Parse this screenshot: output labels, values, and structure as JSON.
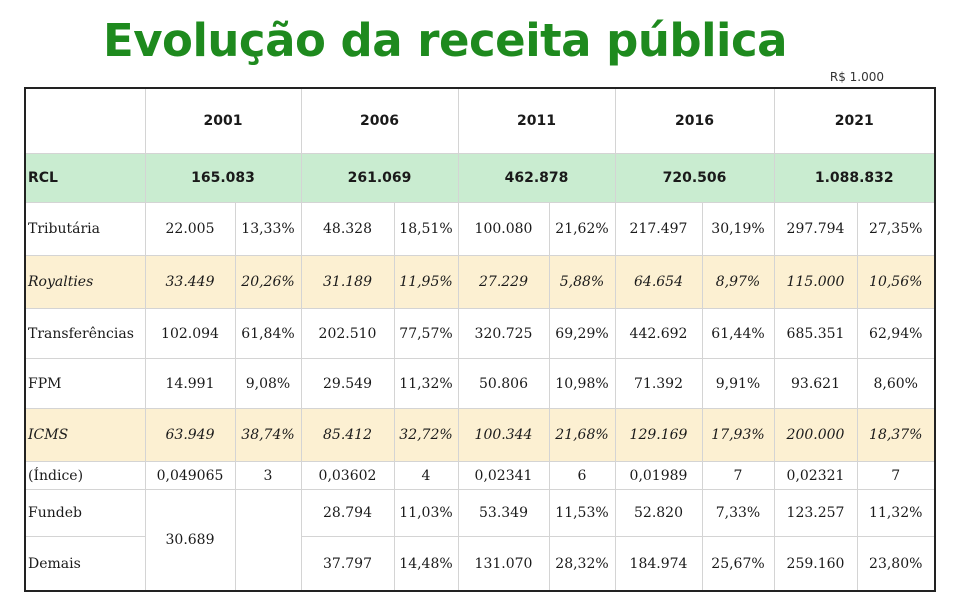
{
  "title": "Evolução da receita pública",
  "unit": "R$ 1.000",
  "years": [
    "2001",
    "2006",
    "2011",
    "2016",
    "2021"
  ],
  "rcl": {
    "label": "RCL",
    "values": [
      "165.083",
      "261.069",
      "462.878",
      "720.506",
      "1.088.832"
    ]
  },
  "rows": [
    {
      "label": "Tributária",
      "cells": [
        "22.005",
        "13,33%",
        "48.328",
        "18,51%",
        "100.080",
        "21,62%",
        "217.497",
        "30,19%",
        "297.794",
        "27,35%"
      ]
    },
    {
      "label": "Royalties",
      "cells": [
        "33.449",
        "20,26%",
        "31.189",
        "11,95%",
        "27.229",
        "5,88%",
        "64.654",
        "8,97%",
        "115.000",
        "10,56%"
      ]
    },
    {
      "label": "Transferências",
      "cells": [
        "102.094",
        "61,84%",
        "202.510",
        "77,57%",
        "320.725",
        "69,29%",
        "442.692",
        "61,44%",
        "685.351",
        "62,94%"
      ]
    },
    {
      "label": "FPM",
      "cells": [
        "14.991",
        "9,08%",
        "29.549",
        "11,32%",
        "50.806",
        "10,98%",
        "71.392",
        "9,91%",
        "93.621",
        "8,60%"
      ]
    },
    {
      "label": "ICMS",
      "cells": [
        "63.949",
        "38,74%",
        "85.412",
        "32,72%",
        "100.344",
        "21,68%",
        "129.169",
        "17,93%",
        "200.000",
        "18,37%"
      ]
    },
    {
      "label": "(Índice)",
      "cells": [
        "0,049065",
        "3",
        "0,03602",
        "4",
        "0,02341",
        "6",
        "0,01989",
        "7",
        "0,02321",
        "7"
      ]
    }
  ],
  "fundeb": {
    "label": "Fundeb",
    "cells": [
      "28.794",
      "11,03%",
      "53.349",
      "11,53%",
      "52.820",
      "7,33%",
      "123.257",
      "11,32%"
    ]
  },
  "demais": {
    "label": "Demais",
    "cells": [
      "37.797",
      "14,48%",
      "131.070",
      "28,32%",
      "184.974",
      "25,67%",
      "259.160",
      "23,80%"
    ]
  },
  "merged_2001_value": "30.689"
}
